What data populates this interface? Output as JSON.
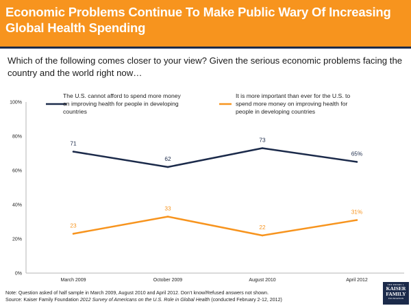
{
  "header": {
    "title": "Economic Problems Continue To Make Public Wary Of Increasing Global Health Spending"
  },
  "question": "Which of the following comes closer to your view? Given the serious economic problems facing the country and the world right now…",
  "chart_data": {
    "type": "line",
    "categories": [
      "March 2009",
      "October 2009",
      "August 2010",
      "April 2012"
    ],
    "ylim": [
      0,
      100
    ],
    "yticks": [
      "0%",
      "20%",
      "40%",
      "60%",
      "80%",
      "100%"
    ],
    "series": [
      {
        "name": "The U.S. cannot afford to spend more money on improving health for people in developing countries",
        "legend_lines": [
          "The U.S. cannot afford to spend more money",
          "on improving health for people in developing",
          "countries"
        ],
        "values": [
          71,
          62,
          73,
          65
        ],
        "labels": [
          "71",
          "62",
          "73",
          "65%"
        ],
        "color": "#1b2a4a"
      },
      {
        "name": "It is more important than ever for the U.S. to spend more money on improving health for people in developing countries",
        "legend_lines": [
          "It is more important than ever for the U.S. to",
          "spend more money on improving health for",
          "people in developing countries"
        ],
        "values": [
          23,
          33,
          22,
          31
        ],
        "labels": [
          "23",
          "33",
          "22",
          "31%"
        ],
        "color": "#f7941e"
      }
    ]
  },
  "footnote": {
    "note": "Note: Question asked of half sample in March 2009, August 2010 and April 2012. Don’t know/Refused answers not shown.",
    "source_prefix": "Source: Kaiser Family Foundation ",
    "source_title": "2012 Survey of Americans on the U.S. Role in Global Health",
    "source_suffix": " (conducted February 2-12, 2012)"
  },
  "logo": {
    "line1": "THE HENRY J.",
    "line2": "KAISER",
    "line3": "FAMILY",
    "line4": "FOUNDATION"
  }
}
